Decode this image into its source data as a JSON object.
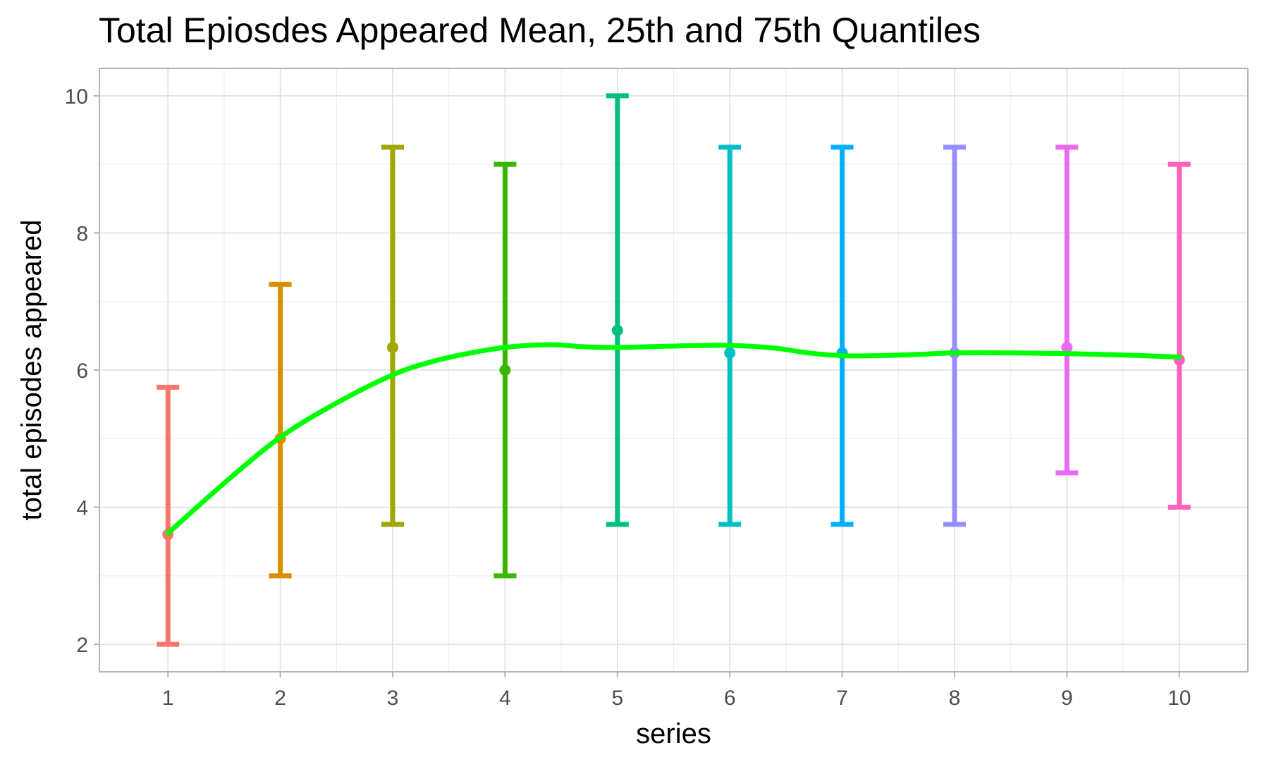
{
  "chart_data": {
    "type": "errorbar-line",
    "title": "Total Epiosdes Appeared Mean, 25th and 75th Quantiles",
    "xlabel": "series",
    "ylabel": "total episodes appeared",
    "x": [
      1,
      2,
      3,
      4,
      5,
      6,
      7,
      8,
      9,
      10
    ],
    "x_ticks": [
      "1",
      "2",
      "3",
      "4",
      "5",
      "6",
      "7",
      "8",
      "9",
      "10"
    ],
    "y_ticks": [
      "2",
      "4",
      "6",
      "8",
      "10"
    ],
    "xlim": [
      0.39,
      10.61
    ],
    "ylim": [
      1.6,
      10.4
    ],
    "grid": true,
    "legend": "none",
    "series": [
      {
        "mean": [
          3.6,
          5.0,
          6.33,
          6.0,
          6.58,
          6.25,
          6.25,
          6.25,
          6.33,
          6.15
        ],
        "q25": [
          2.0,
          3.0,
          3.75,
          3.0,
          3.75,
          3.75,
          3.75,
          3.75,
          4.5,
          4.0
        ],
        "q75": [
          5.75,
          7.25,
          9.25,
          9.0,
          10.0,
          9.25,
          9.25,
          9.25,
          9.25,
          9.0
        ],
        "colors": [
          "#F8766D",
          "#D89000",
          "#A3A500",
          "#39B600",
          "#00BF7D",
          "#00BFC4",
          "#00B0F6",
          "#9590FF",
          "#E76BF3",
          "#FF62BC"
        ]
      }
    ],
    "smooth_line": {
      "color": "#00FF00",
      "x": [
        1,
        1.5,
        2,
        2.5,
        3,
        3.3,
        3.6,
        4,
        4.4,
        4.7,
        5,
        5.5,
        6,
        6.4,
        6.7,
        7,
        7.3,
        7.7,
        8,
        8.5,
        9,
        9.5,
        10
      ],
      "y": [
        3.62,
        4.35,
        5.02,
        5.52,
        5.93,
        6.1,
        6.22,
        6.33,
        6.37,
        6.34,
        6.33,
        6.35,
        6.36,
        6.32,
        6.25,
        6.21,
        6.21,
        6.23,
        6.25,
        6.25,
        6.24,
        6.22,
        6.19
      ]
    }
  }
}
